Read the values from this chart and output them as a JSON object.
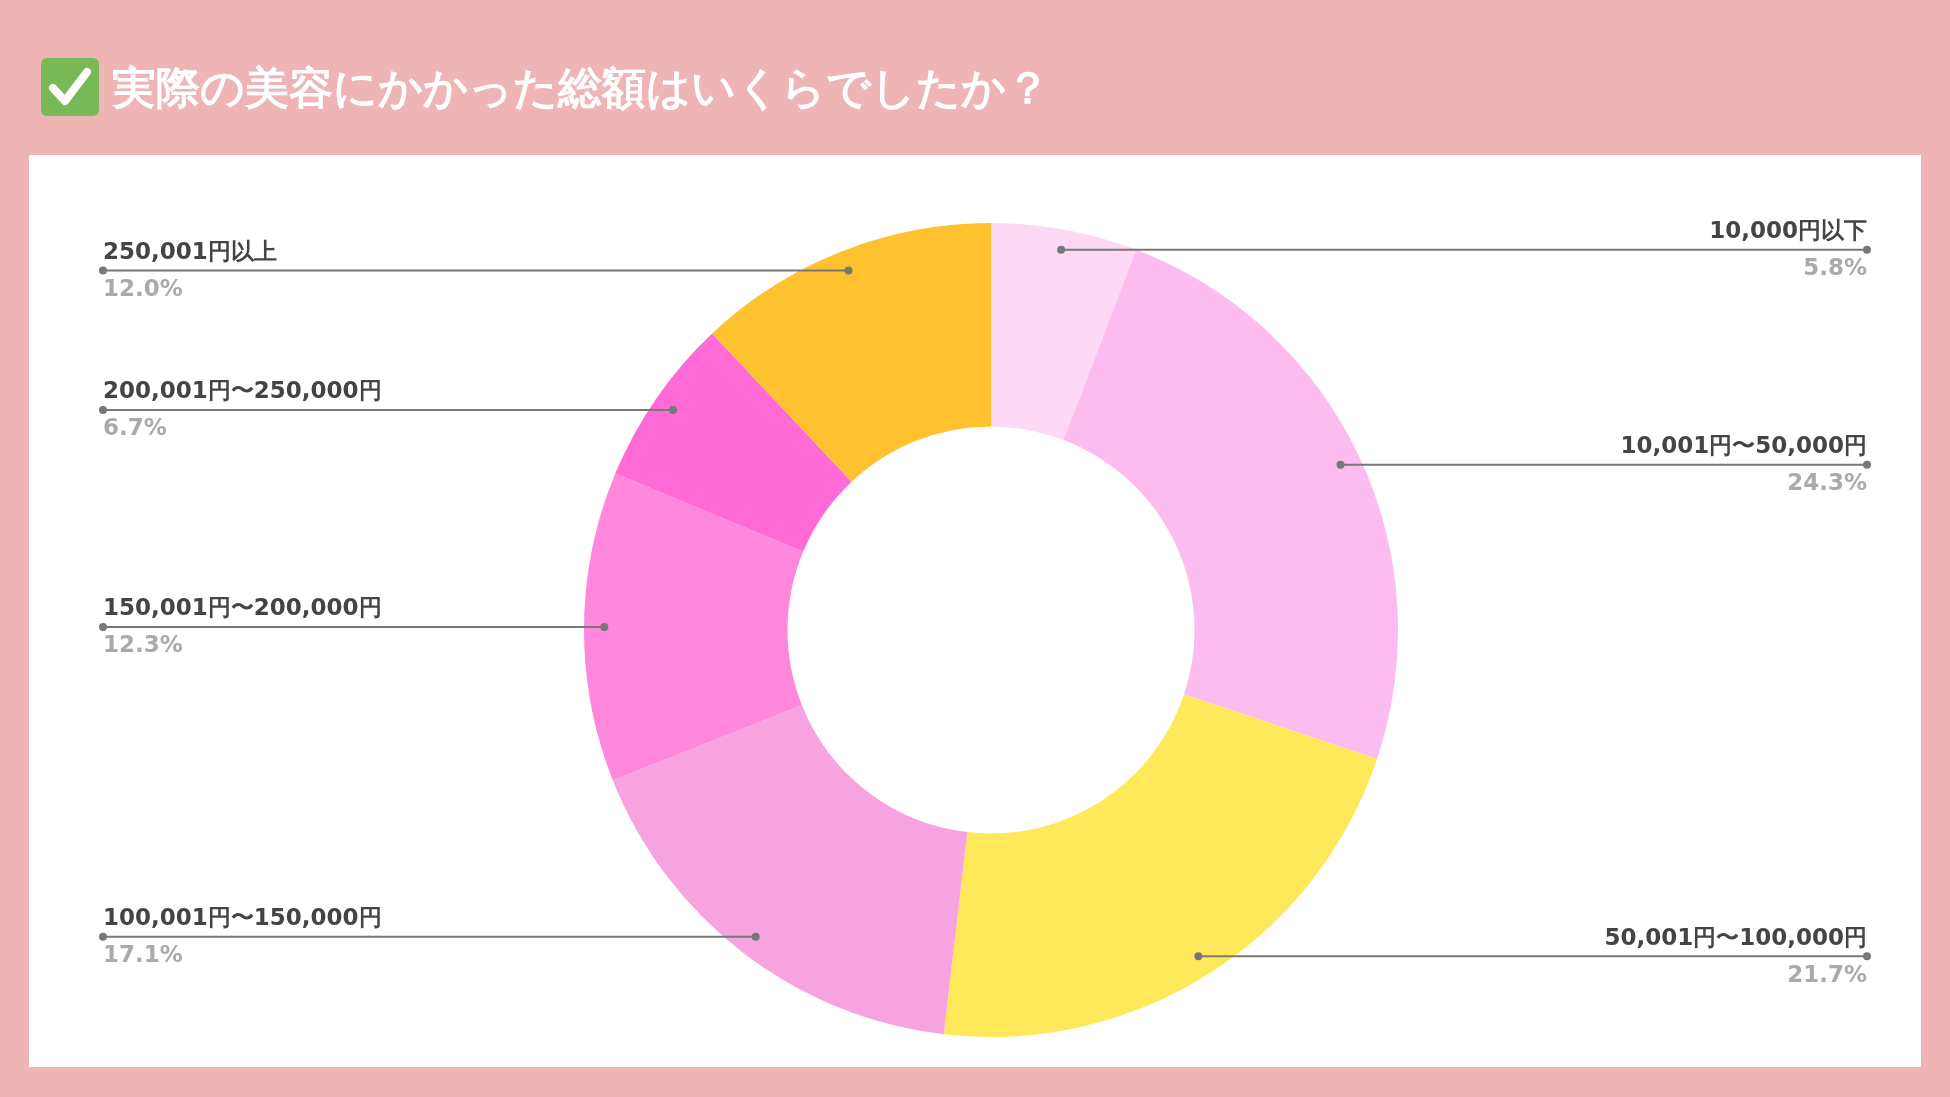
{
  "chart_data": {
    "type": "donut",
    "title": "実際の美容にかかった総額はいくらでしたか？",
    "categories": [
      "10,000円以下",
      "10,001円〜50,000円",
      "50,001円〜100,000円",
      "100,001円〜150,000円",
      "150,001円〜200,000円",
      "200,001円〜250,000円",
      "250,001円以上"
    ],
    "values": [
      5.8,
      24.3,
      21.7,
      17.1,
      12.3,
      6.7,
      12.0
    ],
    "value_labels": [
      "5.8%",
      "24.3%",
      "21.7%",
      "17.1%",
      "12.3%",
      "6.7%",
      "12.0%"
    ],
    "colors": [
      "#fed9f3",
      "#fdbcef",
      "#ffe95a",
      "#f7a3df",
      "#ff88dc",
      "#ff6ad5",
      "#ffc12e"
    ],
    "legend": false
  }
}
